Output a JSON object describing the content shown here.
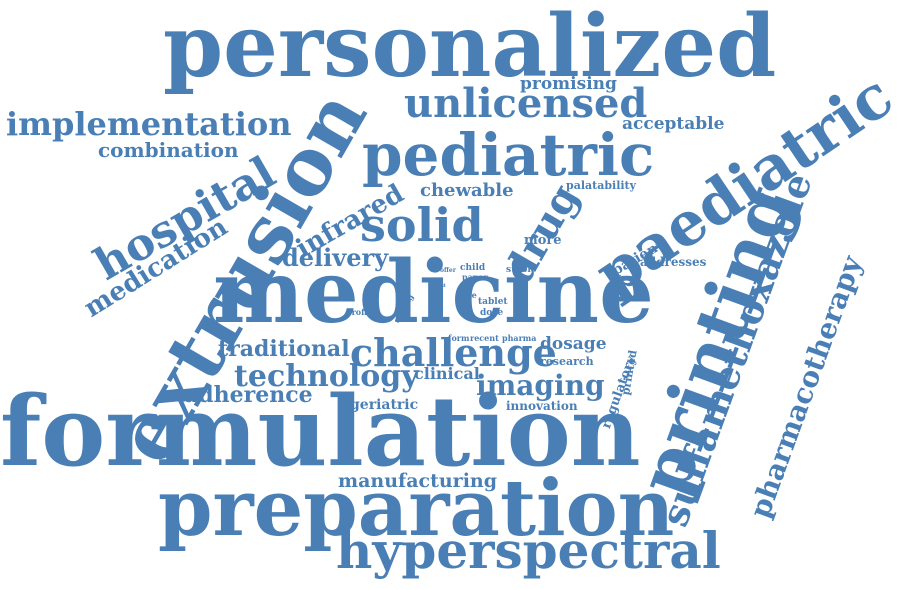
{
  "word_cloud": {
    "color": "#4a7fb5",
    "words": {
      "personalized": "personalized",
      "implementation": "implementation",
      "combination": "combination",
      "unlicensed": "unlicensed",
      "promising": "promising",
      "acceptable": "acceptable",
      "paediatric": "paediatric",
      "pediatric": "pediatric",
      "extrusion": "extrusion",
      "hospital": "hospital",
      "medication": "medication",
      "infrared": "infrared",
      "chewable": "chewable",
      "palatability": "palatability",
      "solid": "solid",
      "drug": "drug",
      "printing": "printing",
      "sulfamethoxazole": "sulfamethoxazole",
      "pharmacotherapy": "pharmacotherapy",
      "delivery": "delivery",
      "more": "more",
      "patient": "patient",
      "addresses": "addresses",
      "offer": "offer",
      "child": "child",
      "paper": "paper",
      "stable": "stable",
      "medicine": "medicine",
      "profile": "profile",
      "setting": "setting",
      "role": "role",
      "tablet": "tablet",
      "dose": "dose",
      "form": "form",
      "recent": "recent",
      "pharma": "pharma",
      "dosage": "dosage",
      "traditional": "traditional",
      "challenge": "challenge",
      "research": "research",
      "regulatory": "regulatory",
      "printed": "printed",
      "technology": "technology",
      "clinical": "clinical",
      "imaging": "imaging",
      "adherence": "adherence",
      "geriatric": "geriatric",
      "innovation": "innovation",
      "formulation": "formulation",
      "manufacturing": "manufacturing",
      "preparation": "preparation",
      "hyperspectral": "hyperspectral",
      "good": "good",
      "tiny_1": "slo",
      "tiny_2": "als"
    }
  }
}
